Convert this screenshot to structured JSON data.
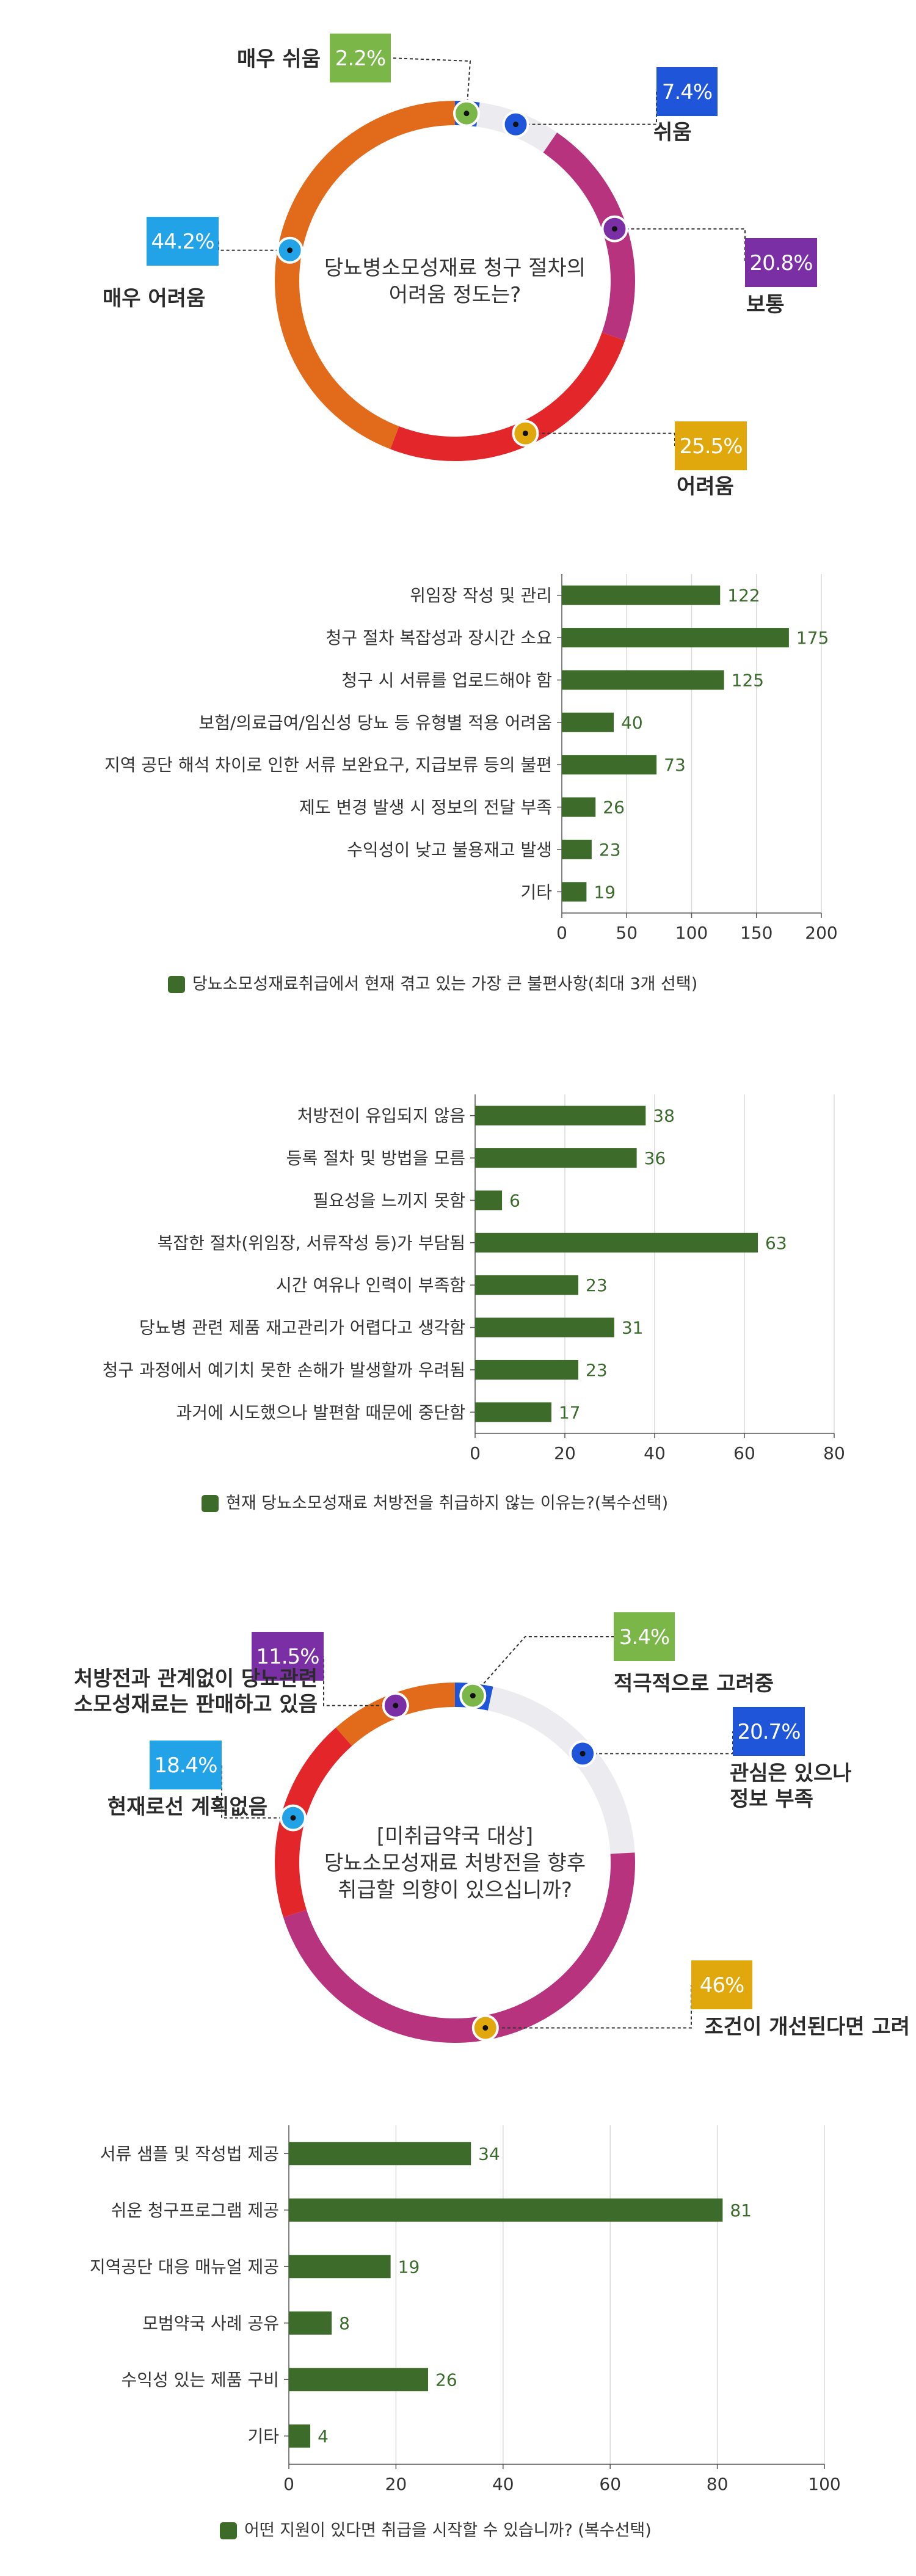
{
  "chart_data": [
    {
      "type": "pie",
      "title": "당뇨병소모성재료 청구 절차의 어려움 정도는?",
      "title_lines": [
        "당뇨병소모성재료 청구 절차의",
        "어려움 정도는?"
      ],
      "slices": [
        {
          "label": "매우 쉬움",
          "value": 2.2,
          "value_label": "2.2%",
          "color": "#1f55d9",
          "badge_color": "#7ab648"
        },
        {
          "label": "쉬움",
          "value": 7.4,
          "value_label": "7.4%",
          "color": "#ececf0",
          "badge_color": "#1f55d9"
        },
        {
          "label": "보통",
          "value": 20.8,
          "value_label": "20.8%",
          "color": "#b7337e",
          "badge_color": "#7b2fa5"
        },
        {
          "label": "어려움",
          "value": 25.5,
          "value_label": "25.5%",
          "color": "#e3262a",
          "badge_color": "#e0a80c"
        },
        {
          "label": "매우 어려움",
          "value": 44.2,
          "value_label": "44.2%",
          "color": "#e26a1b",
          "badge_color": "#22a3e8"
        }
      ]
    },
    {
      "type": "bar",
      "orientation": "horizontal",
      "categories": [
        "위임장 작성 및 관리",
        "청구 절차 복잡성과 장시간 소요",
        "청구 시 서류를 업로드해야 함",
        "보험/의료급여/임신성 당뇨 등 유형별 적용 어려움",
        "지역 공단 해석 차이로 인한 서류 보완요구, 지급보류 등의 불편",
        "제도 변경 발생 시 정보의 전달 부족",
        "수익성이 낮고 불용재고 발생",
        "기타"
      ],
      "values": [
        122,
        175,
        125,
        40,
        73,
        26,
        23,
        19
      ],
      "xlim": [
        0,
        200
      ],
      "xticks": [
        "0",
        "50",
        "100",
        "150",
        "200"
      ],
      "legend": "당뇨소모성재료취급에서 현재 겪고 있는 가장 큰 불편사항(최대 3개 선택)",
      "color": "#3d6b2a",
      "grid": true
    },
    {
      "type": "bar",
      "orientation": "horizontal",
      "categories": [
        "처방전이 유입되지 않음",
        "등록 절차 및 방법을 모름",
        "필요성을 느끼지 못함",
        "복잡한 절차(위임장, 서류작성 등)가 부담됨",
        "시간 여유나 인력이 부족함",
        "당뇨병 관련 제품 재고관리가 어렵다고 생각함",
        "청구 과정에서 예기치 못한 손해가 발생할까 우려됨",
        "과거에 시도했으나 발편함 때문에 중단함"
      ],
      "values": [
        38,
        36,
        6,
        63,
        23,
        31,
        23,
        17
      ],
      "xlim": [
        0,
        80
      ],
      "xticks": [
        "0",
        "20",
        "40",
        "60",
        "80"
      ],
      "legend": "현재 당뇨소모성재료 처방전을 취급하지 않는 이유는?(복수선택)",
      "color": "#3d6b2a",
      "grid": true
    },
    {
      "type": "pie",
      "title": "[미취급약국 대상] 당뇨소모성재료 처방전을 향후 취급할 의향이 있으십니까?",
      "title_lines": [
        "[미취급약국 대상]",
        "당뇨소모성재료 처방전을 향후",
        "취급할 의향이 있으십니까?"
      ],
      "slices": [
        {
          "label": "적극적으로 고려중",
          "value": 3.4,
          "value_label": "3.4%",
          "color": "#1f55d9",
          "badge_color": "#7ab648"
        },
        {
          "label": "관심은 있으나 정보 부족",
          "label_lines": [
            "관심은 있으나",
            "정보 부족"
          ],
          "value": 20.7,
          "value_label": "20.7%",
          "color": "#ececf0",
          "badge_color": "#1f55d9"
        },
        {
          "label": "조건이 개선된다면 고려",
          "value": 46,
          "value_label": "46%",
          "color": "#b7337e",
          "badge_color": "#e0a80c"
        },
        {
          "label": "현재로선 계획없음",
          "value": 18.4,
          "value_label": "18.4%",
          "color": "#e3262a",
          "badge_color": "#22a3e8"
        },
        {
          "label": "처방전과 관계없이 당뇨관련 소모성재료는 판매하고 있음",
          "label_lines": [
            "처방전과 관계없이 당뇨관련",
            "소모성재료는 판매하고 있음"
          ],
          "value": 11.5,
          "value_label": "11.5%",
          "color": "#e26a1b",
          "badge_color": "#7b2fa5"
        }
      ]
    },
    {
      "type": "bar",
      "orientation": "horizontal",
      "categories": [
        "서류 샘플 및 작성법 제공",
        "쉬운 청구프로그램 제공",
        "지역공단 대응 매뉴얼 제공",
        "모범약국 사례 공유",
        "수익성 있는 제품 구비",
        "기타"
      ],
      "values": [
        34,
        81,
        19,
        8,
        26,
        4
      ],
      "xlim": [
        0,
        100
      ],
      "xticks": [
        "0",
        "20",
        "40",
        "60",
        "80",
        "100"
      ],
      "legend": "어떤 지원이 있다면 취급을 시작할 수 있습니까? (복수선택)",
      "color": "#3d6b2a",
      "grid": true
    }
  ]
}
